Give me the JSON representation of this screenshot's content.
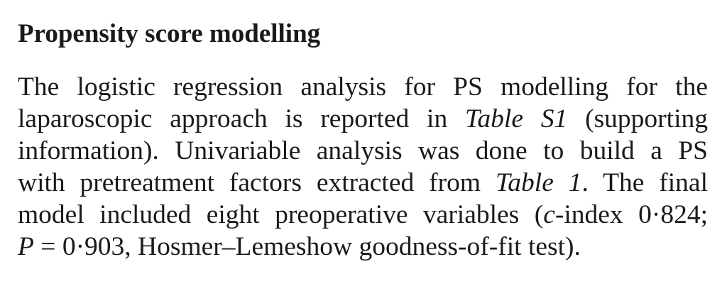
{
  "section": {
    "heading": "Propensity score modelling"
  },
  "paragraph": {
    "line1": "The logistic regression analysis for PS modelling for the",
    "line2_a": "laparoscopic approach is reported in ",
    "line2_b": "Table S1",
    "line2_c": " (supporting",
    "line3": "information). Univariable analysis was done to build a PS",
    "line4_a": "with pretreatment factors extracted from ",
    "line4_b": "Table 1",
    "line4_c": ". The final",
    "line5_a": "model included eight preoperative variables (",
    "line5_b": "c",
    "line5_c": "-index 0·824;",
    "line6_a": "P",
    "line6_b": " = 0·903, Hosmer–Lemeshow goodness-of-fit test)."
  }
}
